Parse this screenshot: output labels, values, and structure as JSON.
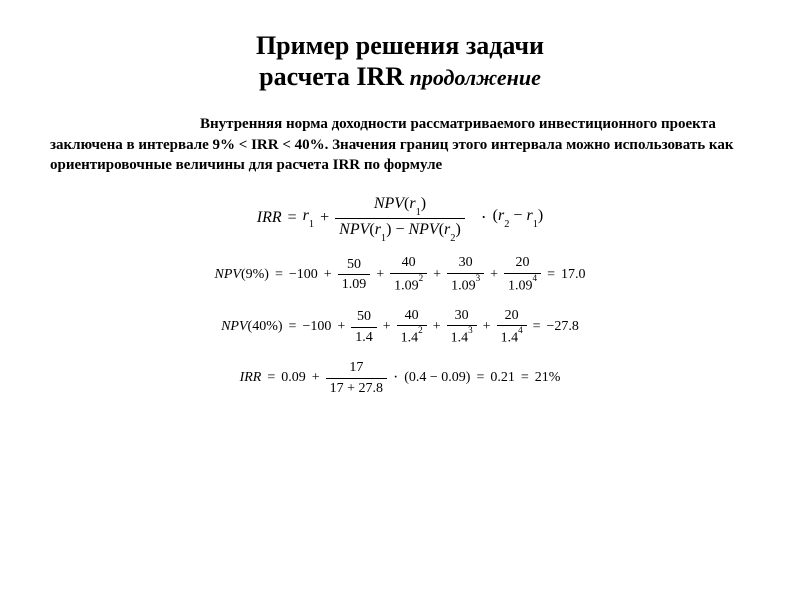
{
  "title": {
    "line1": "Пример решения задачи",
    "line2_main": "расчета IRR",
    "line2_sub": " продолжение"
  },
  "paragraph": {
    "part1": "Внутренняя норма доходности рассматриваемого инвестиционного проекта заключена в интервале 9% < IRR < 40%. Значения границ этого интервала можно использовать как ориентировочные величины для расчета IRR по формуле"
  },
  "formula_irr": {
    "lhs": "IRR",
    "r1": "r",
    "r1_sub": "1",
    "npv": "NPV",
    "open": "(",
    "close": ")",
    "r2": "r",
    "r2_sub": "2",
    "minus": "−",
    "plus": "+",
    "eq": "=",
    "dot": "·"
  },
  "npv9": {
    "label": "NPV",
    "rate": "(9%)",
    "eq": "=",
    "neg100": "−100",
    "plus": "+",
    "t1_num": "50",
    "t1_den": "1.09",
    "t2_num": "40",
    "t2_den": "1.09",
    "t2_exp": "2",
    "t3_num": "30",
    "t3_den": "1.09",
    "t3_exp": "3",
    "t4_num": "20",
    "t4_den": "1.09",
    "t4_exp": "4",
    "result": "17.0"
  },
  "npv40": {
    "label": "NPV",
    "rate": "(40%)",
    "eq": "=",
    "neg100": "−100",
    "plus": "+",
    "t1_num": "50",
    "t1_den": "1.4",
    "t2_num": "40",
    "t2_den": "1.4",
    "t2_exp": "2",
    "t3_num": "30",
    "t3_den": "1.4",
    "t3_exp": "3",
    "t4_num": "20",
    "t4_den": "1.4",
    "t4_exp": "4",
    "result": "−27.8"
  },
  "irr_calc": {
    "lhs": "IRR",
    "eq": "=",
    "r1": "0.09",
    "plus": "+",
    "frac_num": "17",
    "frac_den": "17 + 27.8",
    "dot": "·",
    "diff": "(0.4 − 0.09)",
    "res1": "0.21",
    "res2": "21%"
  },
  "style": {
    "bg": "#ffffff",
    "text_color": "#000000",
    "title_fontsize": 26,
    "subtitle_fontsize": 22,
    "body_fontsize": 15,
    "formula_fontsize": 16,
    "formula_small_fontsize": 14
  }
}
